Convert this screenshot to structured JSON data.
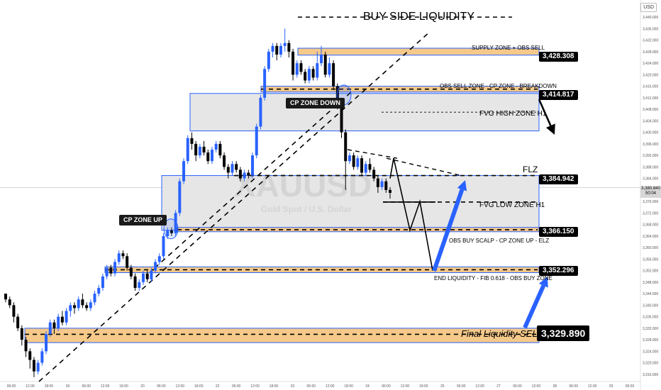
{
  "currency": "USD",
  "last_price": {
    "price": "3,380.840",
    "time": "50:04"
  },
  "watermark": {
    "symbol": "XAUUSD",
    "name": "Gold Spot / U.S. Dollar"
  },
  "title": "BUY SIDE LIQUIDITY",
  "labels": {
    "supply": "SUPPLY ZONE + OBS SELL",
    "obs_sell": "OBS SELL ZONE - CP ZONE - BREAKDOWN",
    "fvg_high": "FVG HIGH ZONE H1",
    "flz": "FLZ",
    "fvg_low": "FVG LOW ZONE H1",
    "obs_buy_scalp": "OBS BUY SCALP - CP ZONE UP - ELZ",
    "end_liquidity": "END LIQUIDITY - FIB 0.618 - OBS BUY ZONE",
    "final_liquidity": "Final Liquidity SELL",
    "cp_zone_down": "CP ZONE  DOWN",
    "cp_zone_up": "CP ZONE UP"
  },
  "price_tags": {
    "supply": "3,428.308",
    "obs_sell": "3,414.817",
    "flz": "3,384.942",
    "fvg_low": "3,366.150",
    "end_liq": "3,352.296",
    "final": "3,329.890"
  },
  "colors": {
    "bull": "#2962ff",
    "bear": "#000000",
    "zone_orange": "#f5c98a",
    "zone_blue_border": "#2962ff",
    "zone_gray": "#e6e6e6",
    "arrow_blue": "#2962ff"
  },
  "chart_data": {
    "type": "candlestick",
    "y_range": [
      3314,
      3442
    ],
    "y_ticks": [
      "3,440.000",
      "3,436.000",
      "3,432.000",
      "3,428.000",
      "3,424.000",
      "3,420.000",
      "3,416.000",
      "3,412.000",
      "3,408.000",
      "3,404.000",
      "3,400.000",
      "3,396.000",
      "3,392.000",
      "3,388.000",
      "3,384.000",
      "3,380.000",
      "3,376.000",
      "3,372.000",
      "3,368.000",
      "3,364.000",
      "3,360.000",
      "3,356.000",
      "3,352.000",
      "3,348.000",
      "3,344.000",
      "3,340.000",
      "3,336.000",
      "3,332.000",
      "3,328.000",
      "3,324.000",
      "3,320.000",
      "3,316.000"
    ],
    "x_ticks": [
      "06:00",
      "12:00",
      "18:00",
      "18",
      "06:00",
      "12:00",
      "18:00",
      "20",
      "06:00",
      "12:00",
      "18:00",
      "22",
      "06:00",
      "12:00",
      "18:00",
      "23",
      "06:00",
      "12:00",
      "18:00",
      "24",
      "06:00",
      "12:00",
      "18:00",
      "25",
      "06:00",
      "12:00",
      "27",
      "06:00",
      "12:00",
      "28",
      "06:00",
      "12:00",
      "29",
      "06:00"
    ],
    "candles": [
      [
        3344.0,
        3342.0,
        3341.0,
        3343.0
      ],
      [
        3342.0,
        3340.0,
        3339.0,
        3343.0
      ],
      [
        3340.0,
        3336.0,
        3334.0,
        3341.0
      ],
      [
        3336.0,
        3332.0,
        3331.0,
        3337.0
      ],
      [
        3332.0,
        3328.0,
        3326.0,
        3333.0
      ],
      [
        3328.0,
        3324.0,
        3322.0,
        3329.0
      ],
      [
        3324.0,
        3321.0,
        3318.0,
        3325.0
      ],
      [
        3321.0,
        3317.0,
        3315.0,
        3322.0
      ],
      [
        3317.0,
        3320.0,
        3316.0,
        3321.0
      ],
      [
        3320.0,
        3324.0,
        3319.0,
        3325.0
      ],
      [
        3324.0,
        3330.0,
        3323.0,
        3331.0
      ],
      [
        3330.0,
        3334.0,
        3329.0,
        3335.0
      ],
      [
        3334.0,
        3332.0,
        3330.0,
        3335.0
      ],
      [
        3332.0,
        3336.0,
        3331.0,
        3337.0
      ],
      [
        3336.0,
        3334.0,
        3333.0,
        3338.0
      ],
      [
        3334.0,
        3338.0,
        3333.0,
        3339.0
      ],
      [
        3338.0,
        3340.0,
        3336.0,
        3341.0
      ],
      [
        3340.0,
        3339.0,
        3337.0,
        3341.0
      ],
      [
        3339.0,
        3342.0,
        3338.0,
        3343.0
      ],
      [
        3342.0,
        3340.0,
        3339.0,
        3344.0
      ],
      [
        3340.0,
        3339.0,
        3338.0,
        3341.0
      ],
      [
        3339.0,
        3341.0,
        3338.0,
        3342.0
      ],
      [
        3341.0,
        3344.0,
        3340.0,
        3345.0
      ],
      [
        3344.0,
        3346.0,
        3343.0,
        3347.0
      ],
      [
        3346.0,
        3350.0,
        3345.0,
        3351.0
      ],
      [
        3350.0,
        3353.0,
        3349.0,
        3354.0
      ],
      [
        3353.0,
        3351.0,
        3350.0,
        3354.0
      ],
      [
        3351.0,
        3355.0,
        3350.0,
        3356.0
      ],
      [
        3355.0,
        3358.0,
        3354.0,
        3359.0
      ],
      [
        3358.0,
        3357.0,
        3356.0,
        3359.0
      ],
      [
        3357.0,
        3353.0,
        3352.0,
        3358.0
      ],
      [
        3353.0,
        3350.0,
        3349.0,
        3354.0
      ],
      [
        3350.0,
        3346.0,
        3345.0,
        3351.0
      ],
      [
        3346.0,
        3348.0,
        3345.0,
        3349.0
      ],
      [
        3348.0,
        3351.0,
        3347.0,
        3352.0
      ],
      [
        3351.0,
        3349.0,
        3348.0,
        3352.0
      ],
      [
        3349.0,
        3352.0,
        3348.0,
        3353.0
      ],
      [
        3352.0,
        3355.0,
        3351.0,
        3356.0
      ],
      [
        3355.0,
        3357.0,
        3354.0,
        3358.0
      ],
      [
        3357.0,
        3364.0,
        3356.0,
        3365.0
      ],
      [
        3364.0,
        3366.0,
        3363.0,
        3367.0
      ],
      [
        3366.0,
        3365.0,
        3364.0,
        3367.0
      ],
      [
        3365.0,
        3372.0,
        3364.0,
        3373.0
      ],
      [
        3372.0,
        3383.0,
        3371.0,
        3384.0
      ],
      [
        3383.0,
        3390.0,
        3382.0,
        3391.0
      ],
      [
        3390.0,
        3398.0,
        3389.0,
        3399.0
      ],
      [
        3398.0,
        3396.0,
        3394.0,
        3400.0
      ],
      [
        3396.0,
        3392.0,
        3390.0,
        3397.0
      ],
      [
        3392.0,
        3395.0,
        3391.0,
        3396.0
      ],
      [
        3395.0,
        3393.0,
        3392.0,
        3397.0
      ],
      [
        3393.0,
        3390.0,
        3389.0,
        3394.0
      ],
      [
        3390.0,
        3394.0,
        3389.0,
        3395.0
      ],
      [
        3394.0,
        3396.0,
        3393.0,
        3397.0
      ],
      [
        3396.0,
        3392.0,
        3391.0,
        3397.0
      ],
      [
        3392.0,
        3388.0,
        3387.0,
        3393.0
      ],
      [
        3388.0,
        3386.0,
        3384.0,
        3389.0
      ],
      [
        3386.0,
        3389.0,
        3385.0,
        3390.0
      ],
      [
        3389.0,
        3387.0,
        3386.0,
        3390.0
      ],
      [
        3387.0,
        3384.0,
        3383.0,
        3388.0
      ],
      [
        3384.0,
        3386.0,
        3383.0,
        3387.0
      ],
      [
        3386.0,
        3385.0,
        3384.0,
        3387.0
      ],
      [
        3385.0,
        3392.0,
        3384.0,
        3393.0
      ],
      [
        3392.0,
        3402.0,
        3391.0,
        3403.0
      ],
      [
        3402.0,
        3412.0,
        3401.0,
        3413.0
      ],
      [
        3412.0,
        3422.0,
        3411.0,
        3423.0
      ],
      [
        3422.0,
        3428.0,
        3421.0,
        3429.0
      ],
      [
        3428.0,
        3430.0,
        3426.0,
        3431.0
      ],
      [
        3430.0,
        3427.0,
        3425.0,
        3431.0
      ],
      [
        3427.0,
        3430.0,
        3426.0,
        3431.0
      ],
      [
        3430.0,
        3431.0,
        3428.0,
        3436.0
      ],
      [
        3431.0,
        3428.0,
        3426.0,
        3432.0
      ],
      [
        3428.0,
        3420.0,
        3418.0,
        3429.0
      ],
      [
        3420.0,
        3424.0,
        3419.0,
        3425.0
      ],
      [
        3424.0,
        3421.0,
        3420.0,
        3425.0
      ],
      [
        3421.0,
        3418.0,
        3417.0,
        3422.0
      ],
      [
        3418.0,
        3422.0,
        3417.0,
        3423.0
      ],
      [
        3422.0,
        3419.0,
        3418.0,
        3423.0
      ],
      [
        3419.0,
        3424.0,
        3418.0,
        3428.0
      ],
      [
        3424.0,
        3427.0,
        3423.0,
        3430.0
      ],
      [
        3427.0,
        3420.0,
        3419.0,
        3428.0
      ],
      [
        3420.0,
        3424.0,
        3419.0,
        3426.0
      ],
      [
        3424.0,
        3416.0,
        3415.0,
        3425.0
      ],
      [
        3416.0,
        3410.0,
        3408.0,
        3417.0
      ],
      [
        3410.0,
        3400.0,
        3398.0,
        3411.0
      ],
      [
        3400.0,
        3390.0,
        3380.0,
        3401.0
      ],
      [
        3390.0,
        3392.0,
        3389.0,
        3393.0
      ],
      [
        3392.0,
        3388.0,
        3387.0,
        3393.0
      ],
      [
        3388.0,
        3391.0,
        3387.0,
        3392.0
      ],
      [
        3391.0,
        3386.0,
        3385.0,
        3392.0
      ],
      [
        3386.0,
        3389.0,
        3385.0,
        3390.0
      ],
      [
        3389.0,
        3387.0,
        3386.0,
        3391.0
      ],
      [
        3387.0,
        3384.0,
        3383.0,
        3388.0
      ],
      [
        3384.0,
        3381.0,
        3379.0,
        3385.0
      ],
      [
        3381.0,
        3383.0,
        3380.0,
        3384.0
      ],
      [
        3383.0,
        3380.0,
        3379.0,
        3384.0
      ],
      [
        3380.0,
        3379.0,
        3377.0,
        3381.0
      ]
    ]
  }
}
